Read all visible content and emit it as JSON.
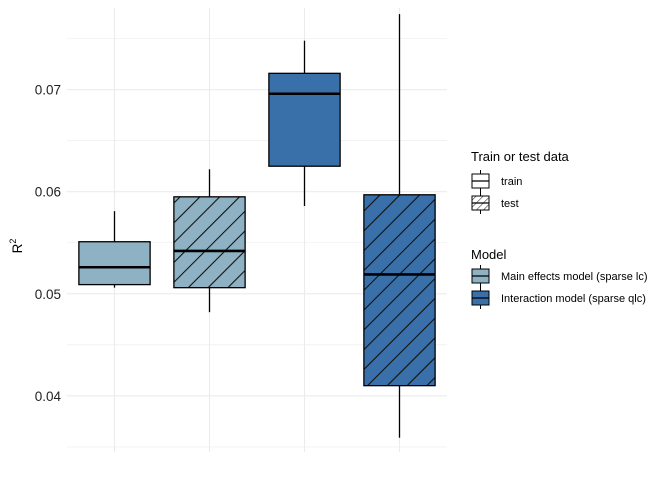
{
  "chart_data": {
    "type": "boxplot",
    "title": "",
    "xlabel": "",
    "ylabel": "R",
    "ylabel_superscript": "2",
    "ylim": [
      0.0345,
      0.078
    ],
    "yticks": [
      0.04,
      0.05,
      0.06,
      0.07
    ],
    "ytick_labels": [
      "0.04",
      "0.05",
      "0.06",
      "0.07"
    ],
    "grid": true,
    "legend_position": "right",
    "groups": [
      {
        "model": "Main effects model (sparse lc)",
        "data": "train",
        "whisker_low": 0.0506,
        "q1": 0.0509,
        "median": 0.0526,
        "q3": 0.0551,
        "whisker_high": 0.0581
      },
      {
        "model": "Main effects model (sparse lc)",
        "data": "test",
        "whisker_low": 0.0482,
        "q1": 0.0506,
        "median": 0.0542,
        "q3": 0.0595,
        "whisker_high": 0.0622
      },
      {
        "model": "Interaction model (sparse qlc)",
        "data": "train",
        "whisker_low": 0.0586,
        "q1": 0.0625,
        "median": 0.0696,
        "q3": 0.0716,
        "whisker_high": 0.0748
      },
      {
        "model": "Interaction model (sparse qlc)",
        "data": "test",
        "whisker_low": 0.0359,
        "q1": 0.041,
        "median": 0.0519,
        "q3": 0.0597,
        "whisker_high": 0.0774
      }
    ],
    "legends": [
      {
        "title": "Train or test data",
        "kind": "pattern",
        "entries": [
          "train",
          "test"
        ]
      },
      {
        "title": "Model",
        "kind": "fill",
        "entries": [
          "Main effects model (sparse lc)",
          "Interaction model (sparse qlc)"
        ]
      }
    ],
    "colors": {
      "Main effects model (sparse lc)": "#8EB2C4",
      "Interaction model (sparse qlc)": "#3A70AA",
      "grid": "#EBEBEB",
      "outline": "#000000"
    }
  }
}
